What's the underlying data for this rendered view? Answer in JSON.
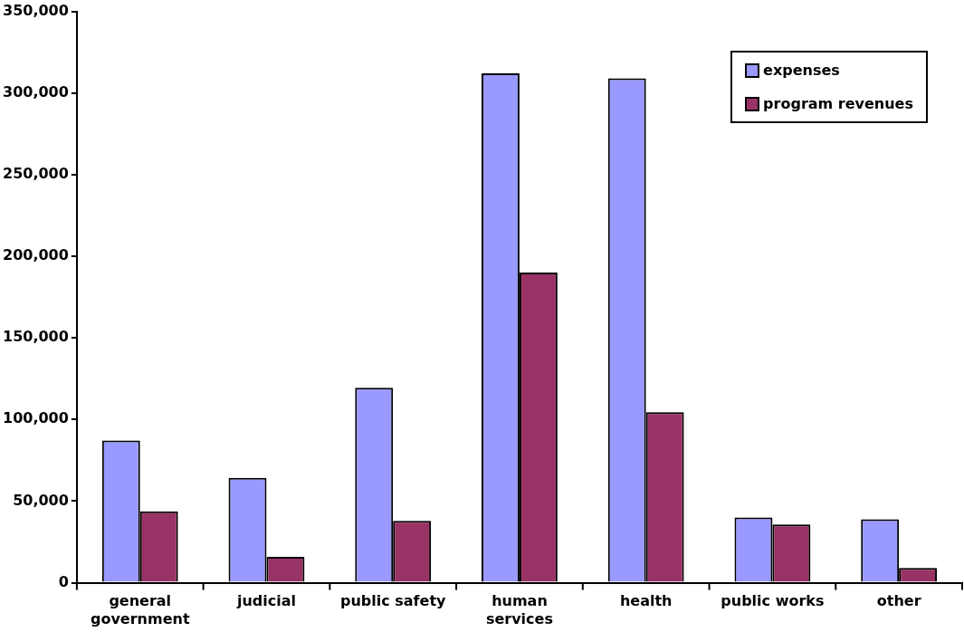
{
  "chart_data": {
    "type": "bar",
    "categories": [
      "general government",
      "judicial",
      "public safety",
      "human services",
      "health",
      "public works",
      "other"
    ],
    "series": [
      {
        "name": "expenses",
        "color": "#9999ff",
        "values": [
          87200,
          64200,
          119400,
          312000,
          309000,
          40000,
          38900
        ]
      },
      {
        "name": "program revenues",
        "color": "#993366",
        "values": [
          43700,
          15900,
          37900,
          190000,
          104500,
          35700,
          9000
        ]
      }
    ],
    "ylim": [
      0,
      350000
    ],
    "yticks": [
      0,
      {
        "value": 50000,
        "label": "50,000"
      },
      {
        "value": 100000,
        "label": "100,000"
      },
      {
        "value": 150000,
        "label": "150,000"
      },
      {
        "value": 200000,
        "label": "200,000"
      },
      {
        "value": 250000,
        "label": "250,000"
      },
      {
        "value": 300000,
        "label": "300,000"
      },
      {
        "value": 350000,
        "label": "350,000"
      }
    ],
    "grid": false,
    "legend": "top right"
  }
}
